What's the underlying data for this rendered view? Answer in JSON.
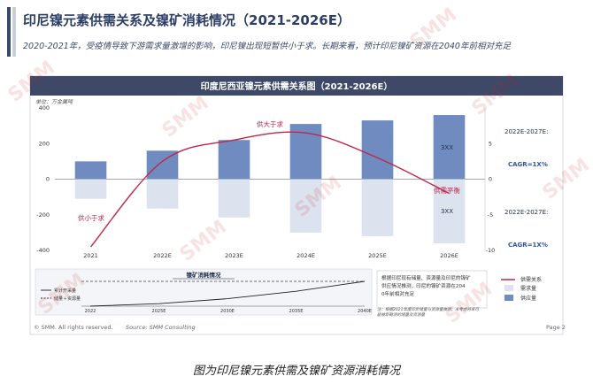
{
  "header": {
    "title": "印尼镍元素供需关系及镍矿消耗情况（2021-2026E）",
    "subtitle": "2020-2021年，受疫情导致下游需求量激增的影响，印尼镍出现短暂供小于求。长期来看，预计印尼镍矿资源在2040年前相对充足"
  },
  "chart_data": [
    {
      "type": "bar",
      "title": "印度尼西亚镍元素供需关系图（2021-2026E）",
      "unit_label": "单位：万金属吨",
      "categories": [
        "2021",
        "2022E",
        "2023E",
        "2024E",
        "2025E",
        "2026E"
      ],
      "series": [
        {
          "name": "供应量",
          "values": [
            100,
            160,
            220,
            310,
            330,
            360
          ]
        },
        {
          "name": "需求量",
          "values": [
            -110,
            -165,
            -215,
            -300,
            -320,
            -360
          ]
        },
        {
          "name": "供需关系",
          "type": "line",
          "values": [
            -9.5,
            2.5,
            5.5,
            6.5,
            3.0,
            -2.0
          ]
        }
      ],
      "left_axis": {
        "ticks": [
          "400",
          "200",
          "0",
          "-200",
          "-400"
        ],
        "range": [
          -400,
          400
        ]
      },
      "right_axis": {
        "ticks": [
          "5",
          "0",
          "-5",
          "-10"
        ],
        "range": [
          -10,
          10
        ]
      },
      "annotations": {
        "supply_exceeds": "供大于求",
        "supply_short": "供小于求",
        "balance": "供需平衡",
        "bar_label_top": "3XX",
        "bar_label_bottom": "3XX",
        "cagr_top_title": "2022E-2027E:",
        "cagr_top_value": "CAGR=1X%",
        "cagr_bottom_title": "2022E-2027E:",
        "cagr_bottom_value": "CAGR=1X%"
      },
      "legend": [
        "供需关系",
        "需求量",
        "供应量"
      ]
    },
    {
      "type": "line",
      "title": "镍矿消耗情况",
      "categories": [
        "2022",
        "2025E",
        "2030E",
        "2035E",
        "2040E"
      ],
      "series": [
        {
          "name": "累计开采量",
          "values": [
            0,
            10,
            30,
            60,
            100
          ]
        },
        {
          "name": "储量＋资源量",
          "values": [
            100,
            100,
            100,
            100,
            100
          ]
        }
      ],
      "note_box": "根据印尼现有储量、资源量及印尼的镍矿供应情况推测，印尼的镍矿资源在2040年前相对充足",
      "footnote": "注：根据2021年度印尼储量与资源量推测，未考虑将来可能被新勘测的储量及资源量"
    }
  ],
  "footer": {
    "copyright": "© SMM. All rights reserved.",
    "source": "Source: SMM Consulting",
    "page": "Page 2"
  },
  "caption": "图为印尼镍元素供需及镍矿资源消耗情况",
  "watermark": "SMM",
  "colors": {
    "supply": "#6f8bbf",
    "demand": "#dce2ee",
    "line": "#c0264a",
    "title_bar": "#3d4966",
    "accent_text": "#2f55a8"
  }
}
